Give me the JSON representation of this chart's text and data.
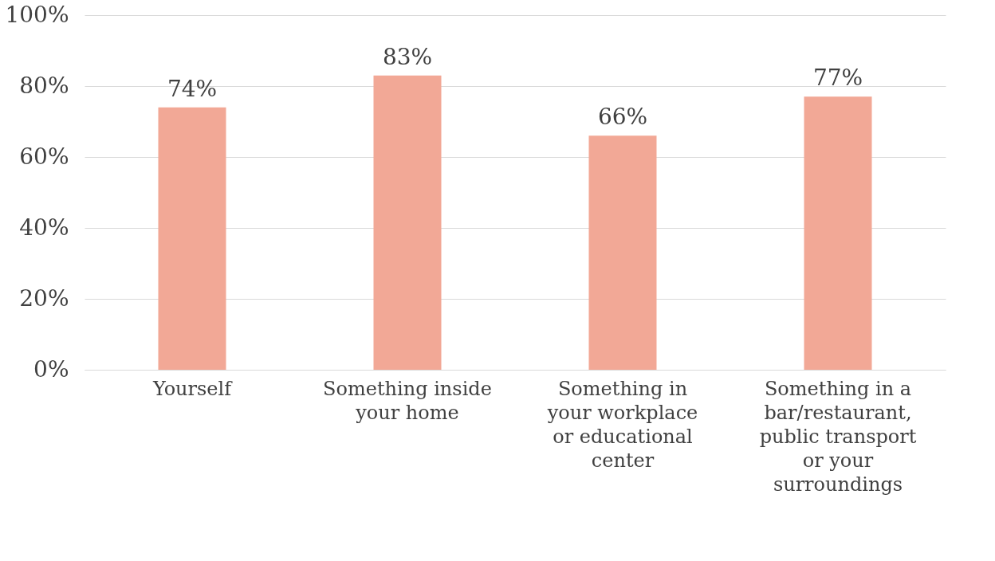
{
  "chart_data": {
    "type": "bar",
    "categories": [
      "Yourself",
      "Something inside your home",
      "Something in your workplace or educational center",
      "Something in a bar/restaurant, public transport or your surroundings"
    ],
    "values": [
      74,
      83,
      66,
      77
    ],
    "value_labels": [
      "74%",
      "83%",
      "66%",
      "77%"
    ],
    "color": "#f2a896",
    "ylim": [
      0,
      100
    ],
    "yticks": [
      {
        "value": 0,
        "label": "0%"
      },
      {
        "value": 20,
        "label": "20%"
      },
      {
        "value": 40,
        "label": "40%"
      },
      {
        "value": 60,
        "label": "60%"
      },
      {
        "value": 80,
        "label": "80%"
      },
      {
        "value": 100,
        "label": "100%"
      }
    ],
    "grid": "y"
  }
}
